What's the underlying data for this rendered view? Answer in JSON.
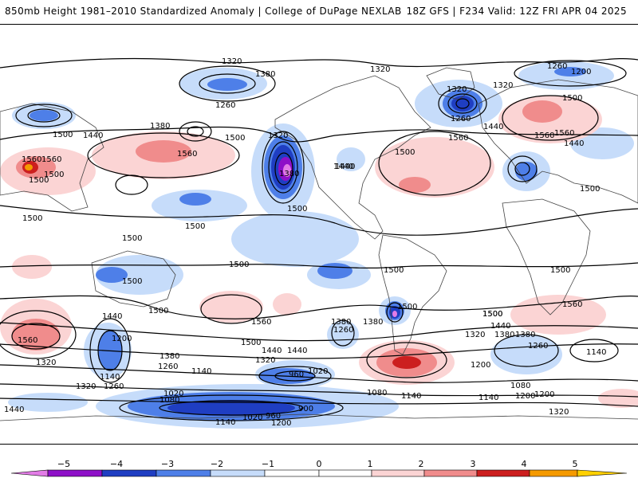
{
  "header": {
    "title_left": "850mb Height 1981–2010 Standardized Anomaly | College of DuPage NEXLAB",
    "title_right": "18Z GFS | F234 Valid: 12Z FRI APR 04 2025"
  },
  "colors": {
    "neg5": "#e27ce6",
    "neg4": "#8e10c8",
    "neg3": "#1f3ec2",
    "neg2": "#4e7fe8",
    "neg1": "#c6dcfa",
    "pos1": "#fbd4d4",
    "pos2": "#f08c8c",
    "pos3": "#cc1f1f",
    "pos4": "#f59a00",
    "pos5": "#ffd000",
    "contour": "#000000",
    "borders": "#444444"
  },
  "colorbar": {
    "labels": [
      "−5",
      "−4",
      "−3",
      "−2",
      "−1",
      "0",
      "1",
      "2",
      "3",
      "4",
      "5"
    ]
  },
  "contour_labels": [
    "1320",
    "1320",
    "1260",
    "1260",
    "1200",
    "1320",
    "1320",
    "1260",
    "1500",
    "1440",
    "1380",
    "1500",
    "1560",
    "1560",
    "1440",
    "1500",
    "1320",
    "1380",
    "1500",
    "1560",
    "1500",
    "1440",
    "1440",
    "1560",
    "1380",
    "1560",
    "1500",
    "1500",
    "1500",
    "1500",
    "1500",
    "1500",
    "1500",
    "1500",
    "1500",
    "1500",
    "1500",
    "1500",
    "1440",
    "1200",
    "1560",
    "1440",
    "1380",
    "1260",
    "1140",
    "1560",
    "1500",
    "1440",
    "1380",
    "1320",
    "1200",
    "1140",
    "1020",
    "960",
    "1260",
    "1320",
    "1380",
    "1380",
    "1260",
    "1560",
    "1500",
    "1440",
    "1380",
    "1320",
    "1260",
    "1200",
    "1140",
    "1080",
    "1320",
    "1440",
    "1020",
    "1080",
    "1140",
    "1020",
    "960",
    "900",
    "1140",
    "1200",
    "1320",
    "1080",
    "1200",
    "1140",
    "1560",
    "1500",
    "1440"
  ]
}
